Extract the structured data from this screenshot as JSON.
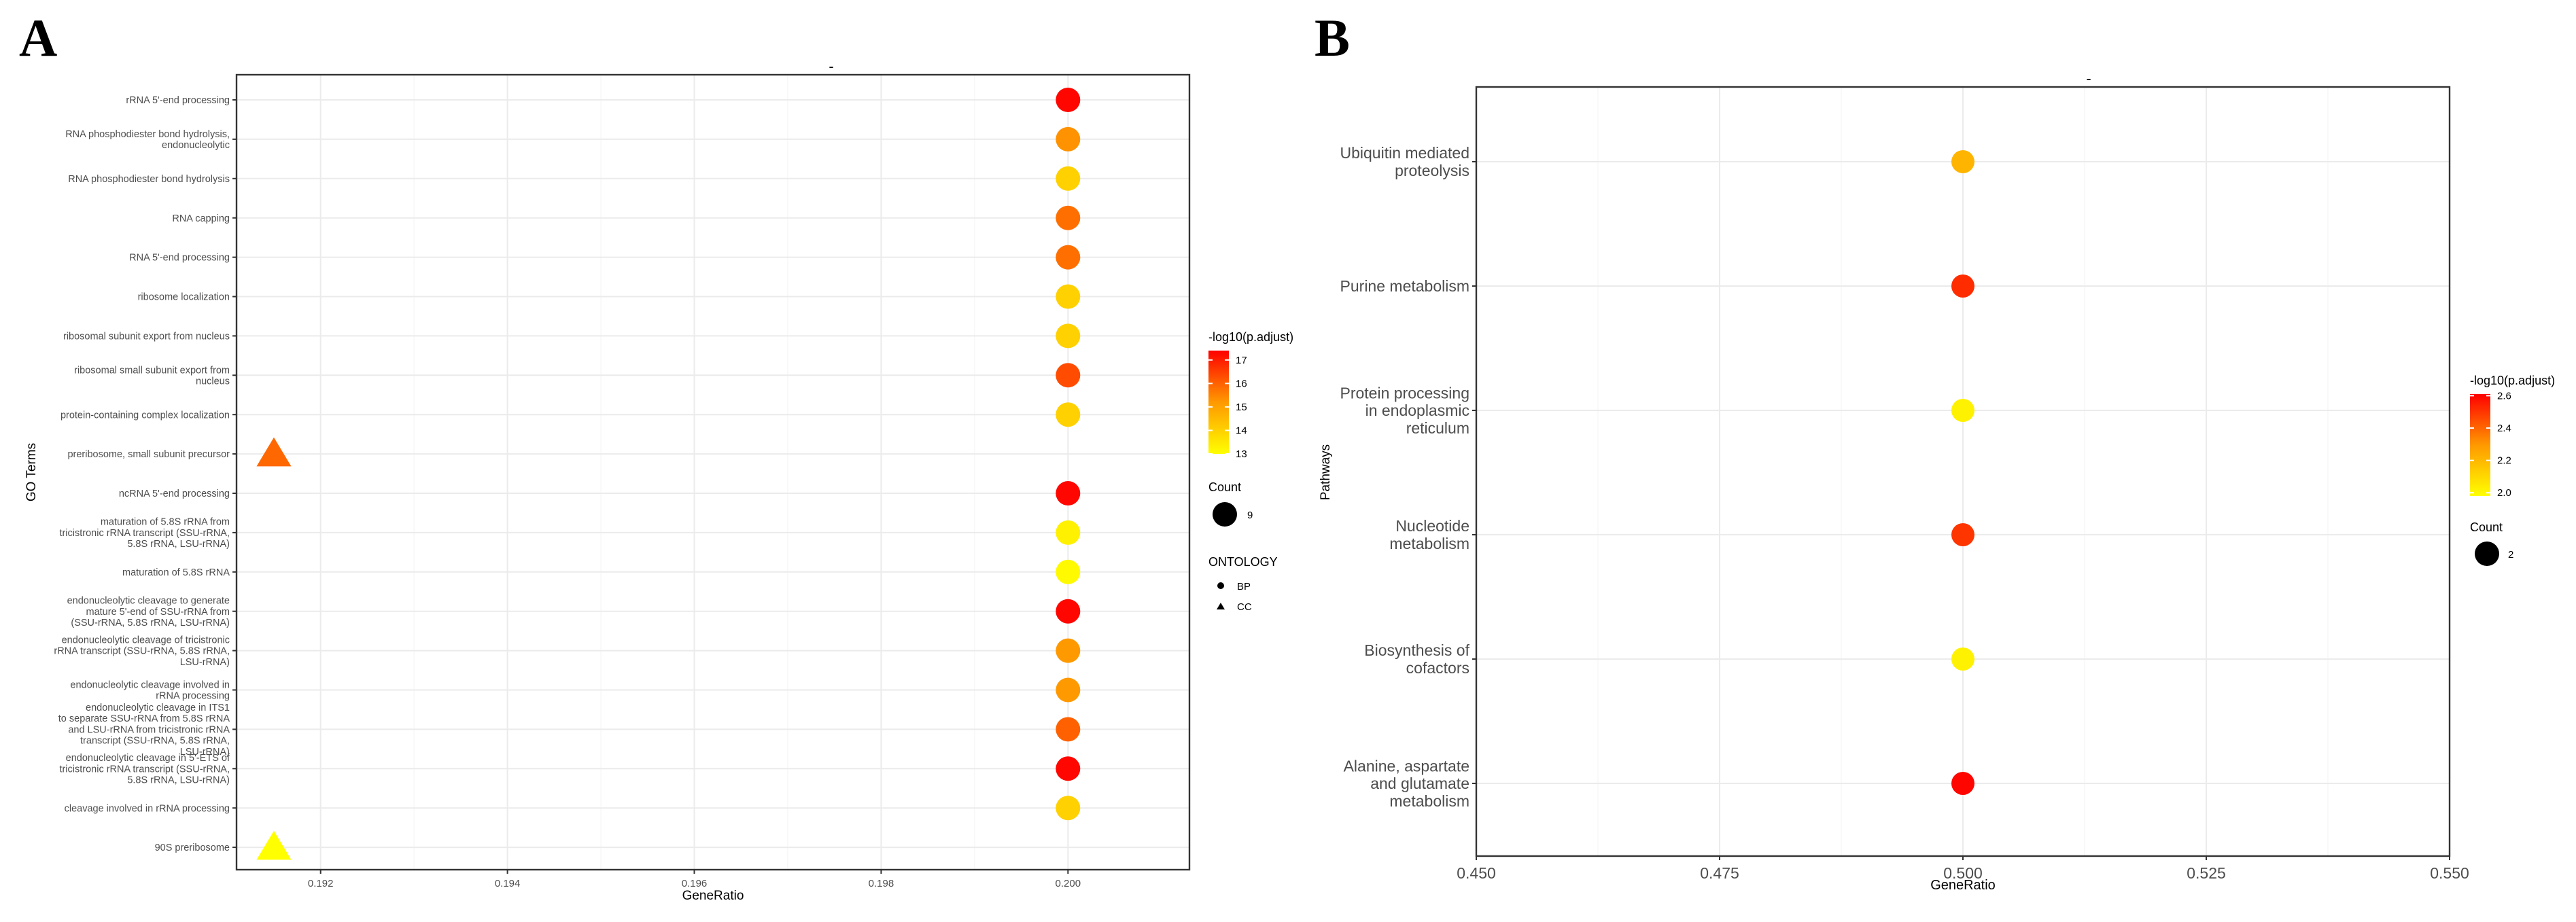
{
  "panels": {
    "a": {
      "letter": "A",
      "title": "-"
    },
    "b": {
      "letter": "B",
      "title": "-"
    }
  },
  "chart_data": [
    {
      "type": "scatter",
      "panel": "A",
      "title": "-",
      "xlabel": "GeneRatio",
      "ylabel": "GO Terms",
      "xlim": [
        0.1911,
        0.2013
      ],
      "xticks": [
        0.192,
        0.194,
        0.196,
        0.198,
        0.2
      ],
      "xtick_labels": [
        "0.192",
        "0.194",
        "0.196",
        "0.198",
        "0.200"
      ],
      "grid": true,
      "categories": [
        "rRNA 5'-end processing",
        "RNA phosphodiester bond hydrolysis,\nendonucleolytic",
        "RNA phosphodiester bond hydrolysis",
        "RNA capping",
        "RNA 5'-end processing",
        "ribosome localization",
        "ribosomal subunit export from nucleus",
        "ribosomal small subunit export from\nnucleus",
        "protein-containing complex localization",
        "preribosome, small subunit precursor",
        "ncRNA 5'-end processing",
        "maturation of 5.8S rRNA from\ntricistronic rRNA transcript (SSU-rRNA,\n5.8S rRNA, LSU-rRNA)",
        "maturation of 5.8S rRNA",
        "endonucleolytic cleavage to generate\nmature 5'-end of SSU-rRNA from\n(SSU-rRNA, 5.8S rRNA, LSU-rRNA)",
        "endonucleolytic cleavage of tricistronic\nrRNA transcript (SSU-rRNA, 5.8S rRNA,\nLSU-rRNA)",
        "endonucleolytic cleavage involved in\nrRNA processing",
        "endonucleolytic cleavage in ITS1\nto separate SSU-rRNA from 5.8S rRNA\nand LSU-rRNA from tricistronic rRNA\ntranscript (SSU-rRNA, 5.8S rRNA,\nLSU-rRNA)",
        "endonucleolytic cleavage in 5'-ETS of\ntricistronic rRNA transcript (SSU-rRNA,\n5.8S rRNA, LSU-rRNA)",
        "cleavage involved in rRNA processing",
        "90S preribosome"
      ],
      "points": [
        {
          "term_index": 0,
          "x": 0.2,
          "neglog10_padj": 17.3,
          "count": 9,
          "ontology": "BP"
        },
        {
          "term_index": 1,
          "x": 0.2,
          "neglog10_padj": 15.3,
          "count": 9,
          "ontology": "BP"
        },
        {
          "term_index": 2,
          "x": 0.2,
          "neglog10_padj": 14.0,
          "count": 9,
          "ontology": "BP"
        },
        {
          "term_index": 3,
          "x": 0.2,
          "neglog10_padj": 15.8,
          "count": 9,
          "ontology": "BP"
        },
        {
          "term_index": 4,
          "x": 0.2,
          "neglog10_padj": 15.8,
          "count": 9,
          "ontology": "BP"
        },
        {
          "term_index": 5,
          "x": 0.2,
          "neglog10_padj": 14.0,
          "count": 9,
          "ontology": "BP"
        },
        {
          "term_index": 6,
          "x": 0.2,
          "neglog10_padj": 14.0,
          "count": 9,
          "ontology": "BP"
        },
        {
          "term_index": 7,
          "x": 0.2,
          "neglog10_padj": 16.3,
          "count": 9,
          "ontology": "BP"
        },
        {
          "term_index": 8,
          "x": 0.2,
          "neglog10_padj": 14.0,
          "count": 9,
          "ontology": "BP"
        },
        {
          "term_index": 9,
          "x": 0.1915,
          "neglog10_padj": 15.9,
          "count": 9,
          "ontology": "CC"
        },
        {
          "term_index": 10,
          "x": 0.2,
          "neglog10_padj": 17.3,
          "count": 9,
          "ontology": "BP"
        },
        {
          "term_index": 11,
          "x": 0.2,
          "neglog10_padj": 13.3,
          "count": 9,
          "ontology": "BP"
        },
        {
          "term_index": 12,
          "x": 0.2,
          "neglog10_padj": 13.1,
          "count": 9,
          "ontology": "BP"
        },
        {
          "term_index": 13,
          "x": 0.2,
          "neglog10_padj": 17.3,
          "count": 9,
          "ontology": "BP"
        },
        {
          "term_index": 14,
          "x": 0.2,
          "neglog10_padj": 15.2,
          "count": 9,
          "ontology": "BP"
        },
        {
          "term_index": 15,
          "x": 0.2,
          "neglog10_padj": 15.2,
          "count": 9,
          "ontology": "BP"
        },
        {
          "term_index": 16,
          "x": 0.2,
          "neglog10_padj": 16.0,
          "count": 9,
          "ontology": "BP"
        },
        {
          "term_index": 17,
          "x": 0.2,
          "neglog10_padj": 17.3,
          "count": 9,
          "ontology": "BP"
        },
        {
          "term_index": 18,
          "x": 0.2,
          "neglog10_padj": 14.0,
          "count": 9,
          "ontology": "BP"
        },
        {
          "term_index": 19,
          "x": 0.1915,
          "neglog10_padj": 13.0,
          "count": 9,
          "ontology": "CC"
        }
      ],
      "color_legend": {
        "title": "-log10(p.adjust)",
        "range": [
          13,
          17.4
        ],
        "ticks": [
          13,
          14,
          15,
          16,
          17
        ],
        "tick_labels": [
          "13",
          "14",
          "15",
          "16",
          "17"
        ],
        "low_color": "#FFFF00",
        "high_color": "#FF0000"
      },
      "size_legend": {
        "title": "Count",
        "entries": [
          {
            "value": 9,
            "label": "9"
          }
        ]
      },
      "shape_legend": {
        "title": "ONTOLOGY",
        "entries": [
          {
            "label": "BP",
            "shape": "circle"
          },
          {
            "label": "CC",
            "shape": "triangle"
          }
        ]
      },
      "legend_position": "right"
    },
    {
      "type": "scatter",
      "panel": "B",
      "title": "-",
      "xlabel": "GeneRatio",
      "ylabel": "Pathways",
      "xlim": [
        0.45,
        0.55
      ],
      "xticks": [
        0.45,
        0.475,
        0.5,
        0.525,
        0.55
      ],
      "xtick_labels": [
        "0.450",
        "0.475",
        "0.500",
        "0.525",
        "0.550"
      ],
      "grid": true,
      "categories": [
        "Ubiquitin mediated\nproteolysis",
        "Purine metabolism",
        "Protein processing\nin endoplasmic\nreticulum",
        "Nucleotide\nmetabolism",
        "Biosynthesis of\ncofactors",
        "Alanine, aspartate\nand glutamate\nmetabolism"
      ],
      "points": [
        {
          "term_index": 0,
          "x": 0.5,
          "neglog10_padj": 2.21,
          "count": 2
        },
        {
          "term_index": 1,
          "x": 0.5,
          "neglog10_padj": 2.52,
          "count": 2
        },
        {
          "term_index": 2,
          "x": 0.5,
          "neglog10_padj": 2.02,
          "count": 2
        },
        {
          "term_index": 3,
          "x": 0.5,
          "neglog10_padj": 2.5,
          "count": 2
        },
        {
          "term_index": 4,
          "x": 0.5,
          "neglog10_padj": 2.02,
          "count": 2
        },
        {
          "term_index": 5,
          "x": 0.5,
          "neglog10_padj": 2.6,
          "count": 2
        }
      ],
      "color_legend": {
        "title": "-log10(p.adjust)",
        "range": [
          1.98,
          2.61
        ],
        "ticks": [
          2.0,
          2.2,
          2.4,
          2.6
        ],
        "tick_labels": [
          "2.0",
          "2.2",
          "2.4",
          "2.6"
        ],
        "low_color": "#FFFF00",
        "high_color": "#FF0000"
      },
      "size_legend": {
        "title": "Count",
        "entries": [
          {
            "value": 2,
            "label": "2"
          }
        ]
      },
      "legend_position": "right"
    }
  ]
}
